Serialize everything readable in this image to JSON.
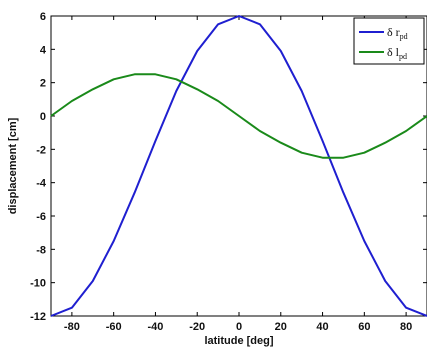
{
  "chart_data": {
    "type": "line",
    "xlabel": "latitude [deg]",
    "ylabel": "displacement [cm]",
    "xlim": [
      -90,
      90
    ],
    "ylim": [
      -12,
      6
    ],
    "xticks": [
      -80,
      -60,
      -40,
      -20,
      0,
      20,
      40,
      60,
      80
    ],
    "yticks": [
      6,
      4,
      2,
      0,
      -2,
      -4,
      -6,
      -8,
      -10,
      -12
    ],
    "grid": false,
    "legend_position": "top-right",
    "series": [
      {
        "name": "δ r",
        "name_subscript": "pd",
        "color": "#1f1fd0",
        "x": [
          -90,
          -80,
          -70,
          -60,
          -50,
          -40,
          -30,
          -20,
          -10,
          0,
          10,
          20,
          30,
          40,
          50,
          60,
          70,
          80,
          90
        ],
        "y": [
          -12,
          -11.5,
          -9.9,
          -7.5,
          -4.6,
          -1.5,
          1.5,
          3.9,
          5.5,
          6,
          5.5,
          3.9,
          1.5,
          -1.5,
          -4.6,
          -7.5,
          -9.9,
          -11.5,
          -12
        ]
      },
      {
        "name": "δ l",
        "name_subscript": "pd",
        "color": "#1a8a1a",
        "x": [
          -90,
          -80,
          -70,
          -60,
          -50,
          -40,
          -30,
          -20,
          -10,
          0,
          10,
          20,
          30,
          40,
          50,
          60,
          70,
          80,
          90
        ],
        "y": [
          0,
          0.9,
          1.6,
          2.2,
          2.5,
          2.5,
          2.2,
          1.6,
          0.9,
          0,
          -0.9,
          -1.6,
          -2.2,
          -2.5,
          -2.5,
          -2.2,
          -1.6,
          -0.9,
          0
        ]
      }
    ]
  }
}
